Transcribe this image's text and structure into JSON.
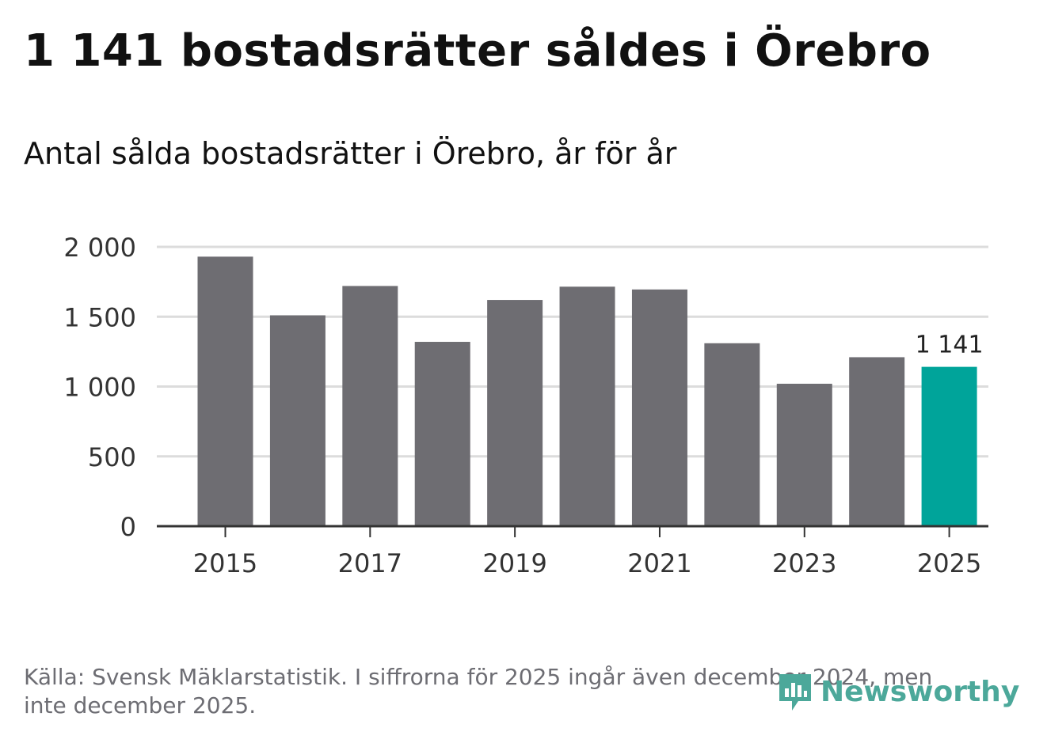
{
  "header": {
    "title": "1 141 bostadsrätter såldes i Örebro",
    "subtitle": "Antal sålda bostadsrätter i Örebro, år för år"
  },
  "chart_data": {
    "type": "bar",
    "title": "1 141 bostadsrätter såldes i Örebro",
    "subtitle": "Antal sålda bostadsrätter i Örebro, år för år",
    "xlabel": "",
    "ylabel": "",
    "categories": [
      "2015",
      "2016",
      "2017",
      "2018",
      "2019",
      "2020",
      "2021",
      "2022",
      "2023",
      "2024",
      "2025"
    ],
    "values": [
      1930,
      1510,
      1720,
      1320,
      1620,
      1715,
      1695,
      1310,
      1020,
      1210,
      1141
    ],
    "ylim": [
      0,
      2000
    ],
    "yticks": [
      0,
      500,
      1000,
      1500,
      2000
    ],
    "ytick_labels": [
      "0",
      "500",
      "1 000",
      "1 500",
      "2 000"
    ],
    "xtick_labels": [
      "2015",
      "2017",
      "2019",
      "2021",
      "2023",
      "2025"
    ],
    "highlight_index": 10,
    "highlight_label": "1 141",
    "bar_color": "#6e6d72",
    "highlight_color": "#00a49a",
    "grid": true
  },
  "footer": {
    "source": "Källa: Svensk Mäklarstatistik. I siffrorna för 2025 ingår även december 2024, men inte december 2025."
  },
  "logo": {
    "text": "Newsworthy",
    "icon": "chart-bubble-icon",
    "color": "#4ca89a"
  }
}
